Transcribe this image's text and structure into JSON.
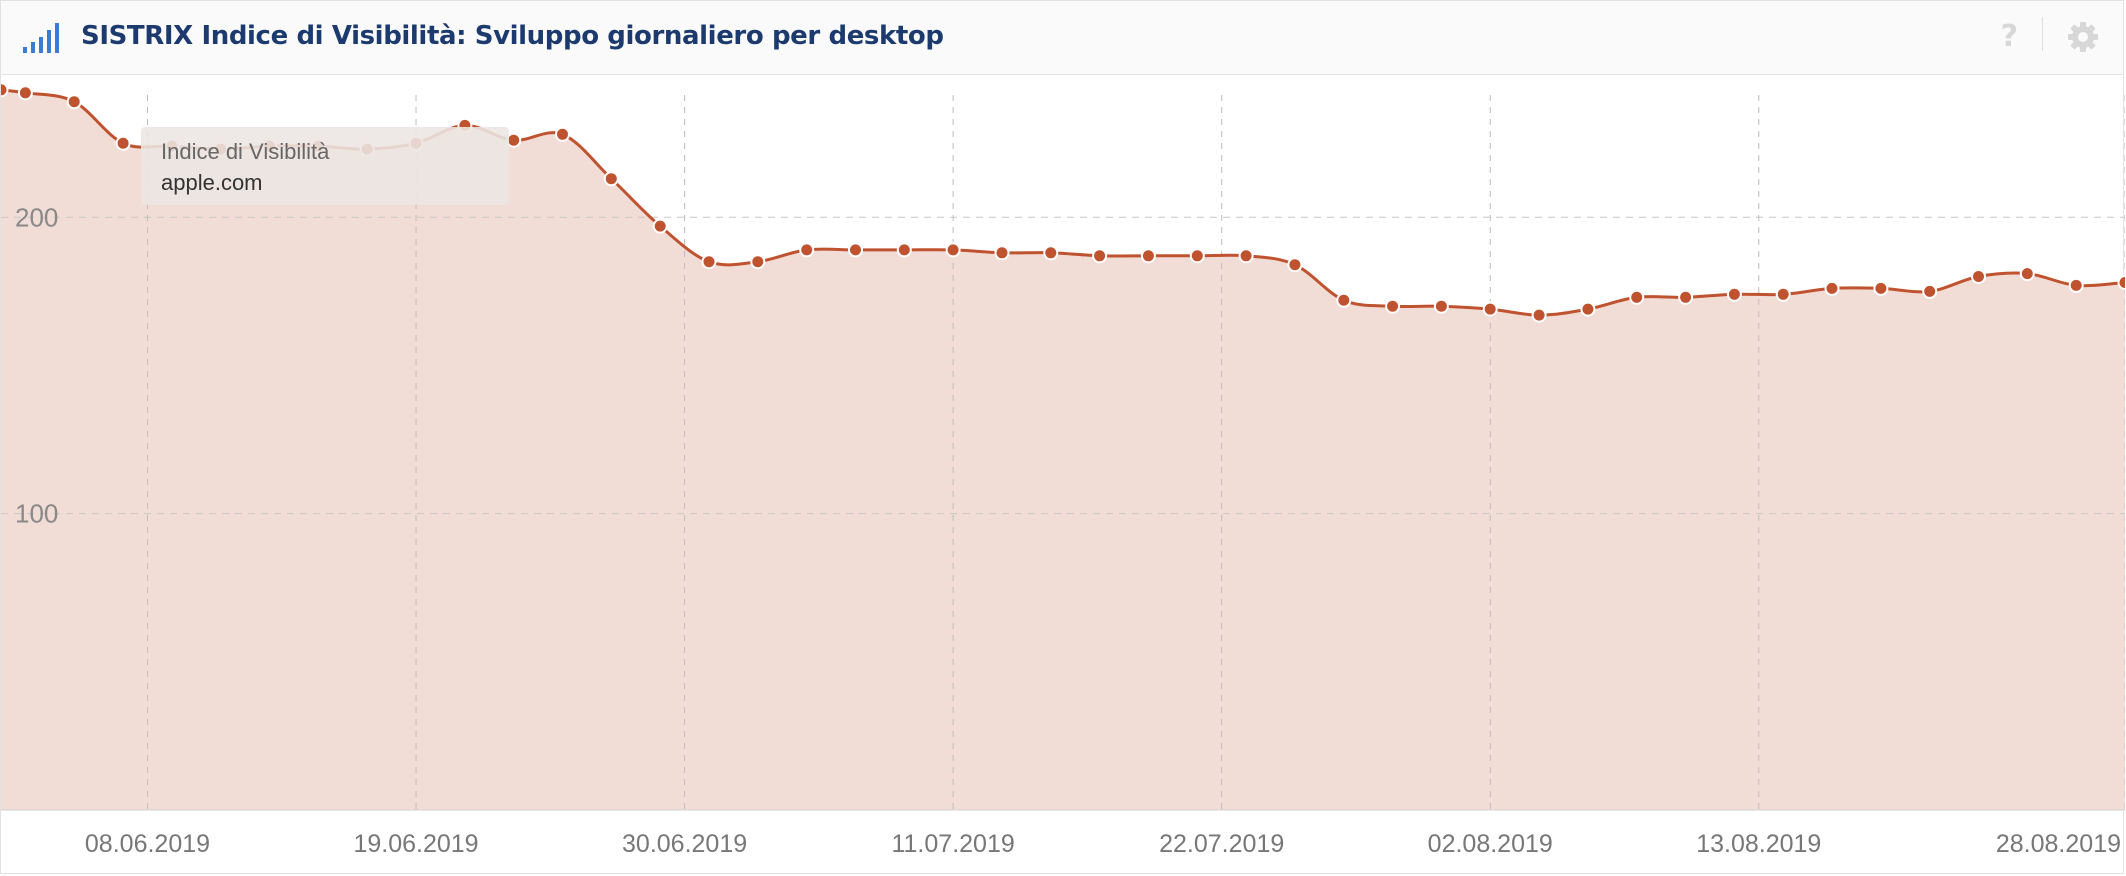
{
  "header": {
    "title": "SISTRIX Indice di Visibilità: Sviluppo giornaliero per desktop",
    "icon": "signal-bars-icon",
    "help_icon": "help-icon",
    "settings_icon": "gear-icon"
  },
  "tooltip": {
    "label": "Indice di Visibilità",
    "domain": "apple.com"
  },
  "colors": {
    "line": "#c0532f",
    "area": "#f2ddd6",
    "title": "#1c3a6e",
    "icon": "#3a7bd5"
  },
  "chart_data": {
    "type": "area",
    "title": "SISTRIX Indice di Visibilità: Sviluppo giornaliero per desktop",
    "xlabel": "",
    "ylabel": "",
    "ylim": [
      0,
      248
    ],
    "yticks": [
      100,
      200
    ],
    "xrange": [
      "2019-06-02",
      "2019-08-28"
    ],
    "xticks": [
      "08.06.2019",
      "19.06.2019",
      "30.06.2019",
      "11.07.2019",
      "22.07.2019",
      "02.08.2019",
      "13.08.2019",
      "28.08.2019"
    ],
    "grid": true,
    "legend": "none",
    "series": [
      {
        "name": "apple.com",
        "x": [
          "2019-06-02",
          "2019-06-03",
          "2019-06-05",
          "2019-06-07",
          "2019-06-09",
          "2019-06-11",
          "2019-06-13",
          "2019-06-15",
          "2019-06-17",
          "2019-06-19",
          "2019-06-21",
          "2019-06-23",
          "2019-06-25",
          "2019-06-27",
          "2019-06-29",
          "2019-07-01",
          "2019-07-03",
          "2019-07-05",
          "2019-07-07",
          "2019-07-09",
          "2019-07-11",
          "2019-07-13",
          "2019-07-15",
          "2019-07-17",
          "2019-07-19",
          "2019-07-21",
          "2019-07-23",
          "2019-07-25",
          "2019-07-27",
          "2019-07-29",
          "2019-07-31",
          "2019-08-02",
          "2019-08-04",
          "2019-08-06",
          "2019-08-08",
          "2019-08-10",
          "2019-08-12",
          "2019-08-14",
          "2019-08-16",
          "2019-08-18",
          "2019-08-20",
          "2019-08-22",
          "2019-08-24",
          "2019-08-26",
          "2019-08-28"
        ],
        "values": [
          243,
          242,
          239,
          225,
          224,
          223,
          224,
          224,
          223,
          225,
          231,
          226,
          228,
          213,
          197,
          185,
          185,
          189,
          189,
          189,
          189,
          188,
          188,
          187,
          187,
          187,
          187,
          184,
          172,
          170,
          170,
          169,
          167,
          169,
          173,
          173,
          174,
          174,
          176,
          176,
          175,
          180,
          181,
          177,
          178
        ]
      }
    ]
  }
}
